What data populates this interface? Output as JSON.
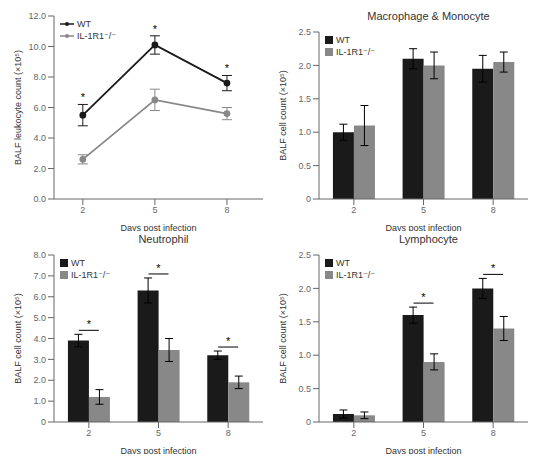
{
  "chart_data": [
    {
      "type": "line",
      "xlabel": "Days post infection",
      "ylabel": "BALF leukocyte count (×10⁵)",
      "x": [
        2,
        5,
        8
      ],
      "xlim": [
        0.8,
        9.5
      ],
      "xticks": [
        2,
        5,
        8
      ],
      "ylim": [
        0,
        12.0
      ],
      "yticks": [
        {
          "value": 0.0,
          "label": "0.0"
        },
        {
          "value": 2.0,
          "label": "2.0"
        },
        {
          "value": 4.0,
          "label": "4.0"
        },
        {
          "value": 6.0,
          "label": "6.0"
        },
        {
          "value": 8.0,
          "label": "8.0"
        },
        {
          "value": 10.0,
          "label": "10.0"
        },
        {
          "value": 12.0,
          "label": "12.0"
        }
      ],
      "series": [
        {
          "name": "WT",
          "color": "#1a1a1a",
          "marker": "circle",
          "values": [
            5.5,
            10.1,
            7.6
          ],
          "errors": [
            0.7,
            0.6,
            0.5
          ]
        },
        {
          "name": "IL-1R1⁻/⁻",
          "color": "#888888",
          "marker": "circle",
          "values": [
            2.6,
            6.5,
            5.6
          ],
          "errors": [
            0.3,
            0.7,
            0.4
          ]
        }
      ],
      "annotations": [
        {
          "x": 2,
          "series": "WT",
          "text": "*"
        },
        {
          "x": 5,
          "series": "WT",
          "text": "*"
        },
        {
          "x": 8,
          "series": "WT",
          "text": "*"
        }
      ],
      "legend": "upper left",
      "grid": false
    },
    {
      "type": "bar",
      "title": "Macrophage & Monocyte",
      "xlabel": "Days post infection",
      "ylabel": "BALF cell count (×10⁵)",
      "categories": [
        "2",
        "5",
        "8"
      ],
      "ylim": [
        0,
        2.5
      ],
      "yticks": [
        0,
        0.5,
        {
          "value": 1.0,
          "label": "1.0"
        },
        1.5,
        {
          "value": 2.0,
          "label": "2.0"
        },
        2.5
      ],
      "series": [
        {
          "name": "WT",
          "color": "#1a1a1a",
          "values": [
            1.0,
            2.1,
            1.95
          ],
          "errors": [
            0.12,
            0.15,
            0.2
          ]
        },
        {
          "name": "IL-1R1⁻/⁻",
          "color": "#888888",
          "values": [
            1.1,
            2.0,
            2.05
          ],
          "errors": [
            0.3,
            0.2,
            0.15
          ]
        }
      ],
      "legend": "upper left",
      "grid": false
    },
    {
      "type": "bar",
      "title": "Neutrophil",
      "xlabel": "Days post infection",
      "ylabel": "BALF cell count (×10⁵)",
      "categories": [
        "2",
        "5",
        "8"
      ],
      "ylim": [
        0,
        8.0
      ],
      "yticks": [
        0,
        {
          "value": 1,
          "label": "1.0"
        },
        {
          "value": 2,
          "label": "2.0"
        },
        {
          "value": 3,
          "label": "3.0"
        },
        {
          "value": 4,
          "label": "4.0"
        },
        {
          "value": 5,
          "label": "5.0"
        },
        {
          "value": 6,
          "label": "6.0"
        },
        {
          "value": 7,
          "label": "7.0"
        },
        {
          "value": 8,
          "label": "8.0"
        }
      ],
      "series": [
        {
          "name": "WT",
          "color": "#1a1a1a",
          "values": [
            3.9,
            6.3,
            3.2
          ],
          "errors": [
            0.3,
            0.6,
            0.2
          ]
        },
        {
          "name": "IL-1R1⁻/⁻",
          "color": "#888888",
          "values": [
            1.2,
            3.45,
            1.9
          ],
          "errors": [
            0.35,
            0.55,
            0.3
          ]
        }
      ],
      "annotations": [
        {
          "category": "2",
          "text": "*"
        },
        {
          "category": "5",
          "text": "*"
        },
        {
          "category": "8",
          "text": "*"
        }
      ],
      "legend": "upper left",
      "grid": false
    },
    {
      "type": "bar",
      "title": "Lymphocyte",
      "xlabel": "Days post infection",
      "ylabel": "BALF cell count (×10⁵)",
      "categories": [
        "2",
        "5",
        "8"
      ],
      "ylim": [
        0,
        2.5
      ],
      "yticks": [
        0,
        0.5,
        {
          "value": 1.0,
          "label": "1.0"
        },
        1.5,
        {
          "value": 2.0,
          "label": "2.0"
        },
        2.5
      ],
      "series": [
        {
          "name": "WT",
          "color": "#1a1a1a",
          "values": [
            0.12,
            1.6,
            2.0
          ],
          "errors": [
            0.06,
            0.12,
            0.15
          ]
        },
        {
          "name": "IL-1R1⁻/⁻",
          "color": "#888888",
          "values": [
            0.1,
            0.9,
            1.4
          ],
          "errors": [
            0.05,
            0.12,
            0.18
          ]
        }
      ],
      "annotations": [
        {
          "category": "5",
          "text": "*"
        },
        {
          "category": "8",
          "text": "*"
        }
      ],
      "legend": "upper left",
      "grid": false
    }
  ]
}
